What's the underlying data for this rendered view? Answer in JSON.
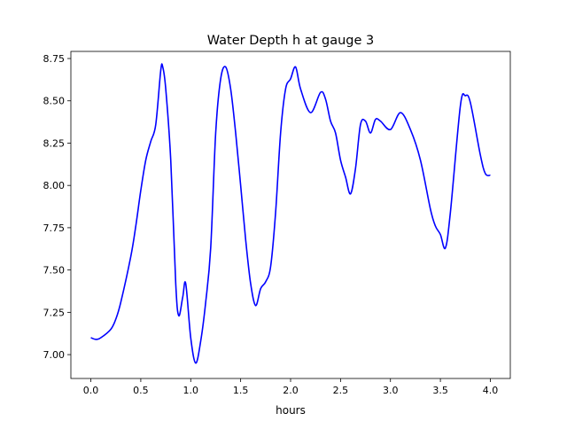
{
  "chart_data": {
    "type": "line",
    "title": "Water Depth h at gauge 3",
    "xlabel": "hours",
    "ylabel": "",
    "xlim": [
      -0.2,
      4.2
    ],
    "ylim": [
      6.859,
      8.792
    ],
    "grid": false,
    "xticks": [
      0.0,
      0.5,
      1.0,
      1.5,
      2.0,
      2.5,
      3.0,
      3.5,
      4.0
    ],
    "xtick_labels": [
      "0.0",
      "0.5",
      "1.0",
      "1.5",
      "2.0",
      "2.5",
      "3.0",
      "3.5",
      "4.0"
    ],
    "yticks": [
      7.0,
      7.25,
      7.5,
      7.75,
      8.0,
      8.25,
      8.5,
      8.75
    ],
    "ytick_labels": [
      "7.00",
      "7.25",
      "7.50",
      "7.75",
      "8.00",
      "8.25",
      "8.50",
      "8.75"
    ],
    "series": [
      {
        "name": "h",
        "color": "#0000ff",
        "x": [
          0,
          0.05,
          0.1,
          0.2,
          0.25,
          0.3,
          0.4,
          0.45,
          0.5,
          0.55,
          0.6,
          0.65,
          0.7,
          0.72,
          0.75,
          0.8,
          0.85,
          0.88,
          0.92,
          0.95,
          1.0,
          1.05,
          1.1,
          1.15,
          1.2,
          1.25,
          1.3,
          1.35,
          1.4,
          1.45,
          1.5,
          1.55,
          1.6,
          1.65,
          1.7,
          1.75,
          1.8,
          1.85,
          1.9,
          1.95,
          2.0,
          2.05,
          2.1,
          2.2,
          2.3,
          2.35,
          2.4,
          2.45,
          2.5,
          2.55,
          2.6,
          2.65,
          2.7,
          2.75,
          2.8,
          2.85,
          2.9,
          3.0,
          3.1,
          3.2,
          3.3,
          3.4,
          3.45,
          3.5,
          3.55,
          3.6,
          3.7,
          3.75,
          3.8,
          3.9,
          3.95,
          4.0
        ],
        "y": [
          7.1,
          7.09,
          7.1,
          7.15,
          7.21,
          7.31,
          7.58,
          7.76,
          7.97,
          8.15,
          8.26,
          8.36,
          8.68,
          8.7,
          8.57,
          8.15,
          7.42,
          7.23,
          7.34,
          7.42,
          7.1,
          6.95,
          7.08,
          7.31,
          7.63,
          8.31,
          8.63,
          8.7,
          8.57,
          8.31,
          8.0,
          7.68,
          7.42,
          7.29,
          7.39,
          7.43,
          7.52,
          7.84,
          8.31,
          8.57,
          8.63,
          8.7,
          8.57,
          8.43,
          8.55,
          8.51,
          8.38,
          8.31,
          8.15,
          8.05,
          7.95,
          8.1,
          8.36,
          8.38,
          8.31,
          8.39,
          8.38,
          8.33,
          8.43,
          8.33,
          8.15,
          7.86,
          7.76,
          7.71,
          7.63,
          7.84,
          8.47,
          8.53,
          8.49,
          8.18,
          8.07,
          8.06
        ]
      }
    ]
  }
}
